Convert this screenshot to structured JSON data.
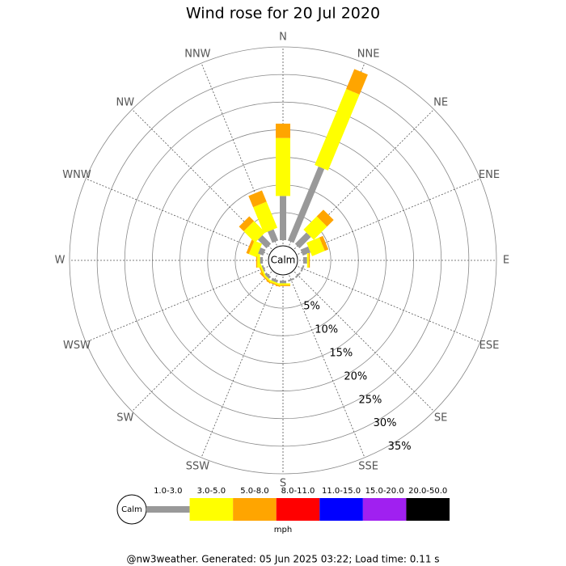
{
  "chart_data": {
    "type": "wind_rose",
    "title": "Wind rose for 20 Jul 2020",
    "directions": [
      "N",
      "NNE",
      "NE",
      "ENE",
      "E",
      "ESE",
      "SE",
      "SSE",
      "S",
      "SSW",
      "SW",
      "WSW",
      "W",
      "WNW",
      "NW",
      "NNW"
    ],
    "series": [
      {
        "name": "1.0-3.0",
        "color": "#999999",
        "values": [
          8.0,
          14.5,
          2.9,
          1.5,
          0.7,
          0.3,
          0.3,
          0.3,
          0.5,
          0.5,
          0.5,
          0.3,
          0.5,
          1.0,
          2.2,
          2.2
        ]
      },
      {
        "name": "3.0-5.0",
        "color": "#ffff00",
        "values": [
          10.5,
          14.9,
          3.4,
          2.5,
          0.3,
          0,
          0,
          0,
          0.3,
          0.3,
          0.3,
          0.3,
          0.5,
          1.5,
          2.9,
          5.1
        ]
      },
      {
        "name": "5.0-8.0",
        "color": "#ffa500",
        "values": [
          2.6,
          3.9,
          1.7,
          0.7,
          0.2,
          0,
          0,
          0,
          0.2,
          0.2,
          0.2,
          0.2,
          0.2,
          0.5,
          1.2,
          2.2
        ]
      },
      {
        "name": "8.0-11.0",
        "color": "#ff0000",
        "values": [
          0,
          0,
          0,
          0,
          0,
          0,
          0,
          0,
          0,
          0,
          0,
          0,
          0,
          0,
          0,
          0
        ]
      },
      {
        "name": "11.0-15.0",
        "color": "#0000ff",
        "values": [
          0,
          0,
          0,
          0,
          0,
          0,
          0,
          0,
          0,
          0,
          0,
          0,
          0,
          0,
          0,
          0
        ]
      },
      {
        "name": "15.0-20.0",
        "color": "#a020f0",
        "values": [
          0,
          0,
          0,
          0,
          0,
          0,
          0,
          0,
          0,
          0,
          0,
          0,
          0,
          0,
          0,
          0
        ]
      },
      {
        "name": "20.0-50.0",
        "color": "#000000",
        "values": [
          0,
          0,
          0,
          0,
          0,
          0,
          0,
          0,
          0,
          0,
          0,
          0,
          0,
          0,
          0,
          0
        ]
      }
    ],
    "rlim": [
      0,
      35
    ],
    "rticks": [
      {
        "value": 5,
        "label": "5%"
      },
      {
        "value": 10,
        "label": "10%"
      },
      {
        "value": 15,
        "label": "15%"
      },
      {
        "value": 20,
        "label": "20%"
      },
      {
        "value": 25,
        "label": "25%"
      },
      {
        "value": 30,
        "label": "30%"
      },
      {
        "value": 35,
        "label": "35%"
      }
    ],
    "calm_label": "Calm",
    "unit": "mph",
    "footer": "@nw3weather. Generated: 05 Jun 2025 03:22; Load time: 0.11 s"
  }
}
